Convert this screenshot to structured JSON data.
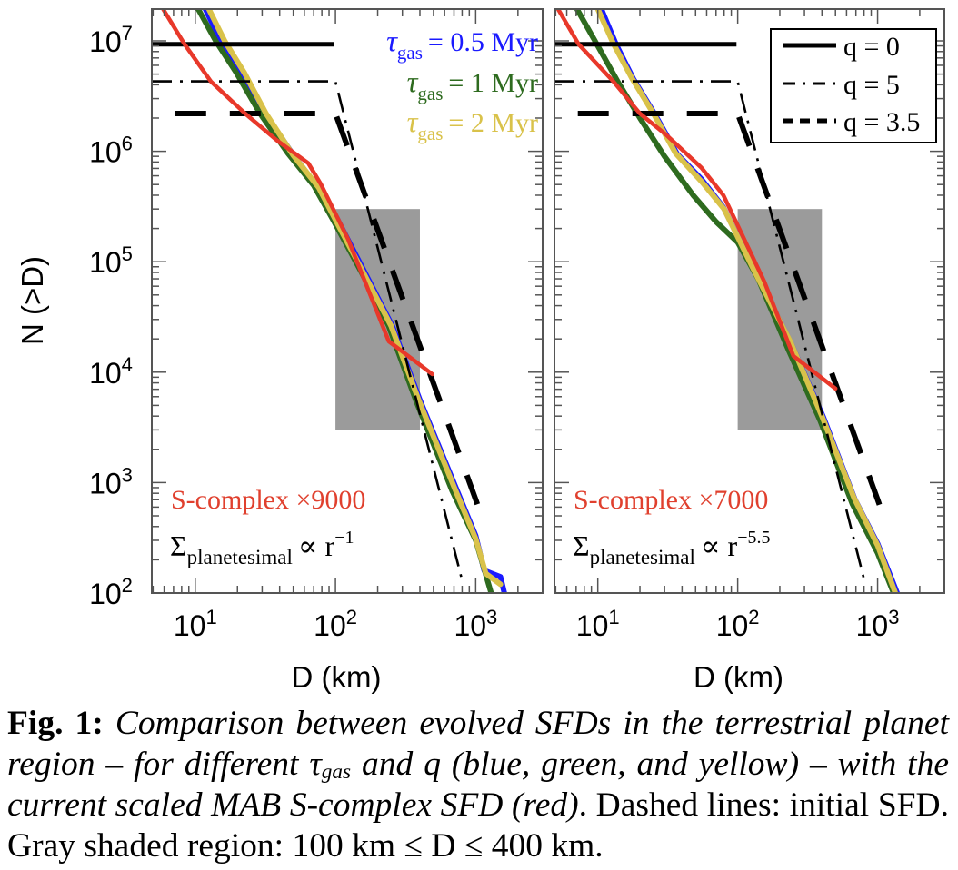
{
  "chart_data": [
    {
      "type": "line",
      "panel": "left",
      "xscale": "log",
      "yscale": "log",
      "xlabel": "D (km)",
      "ylabel": "N (>D)",
      "xlim": [
        4.9,
        3000
      ],
      "ylim": [
        100,
        19400000
      ],
      "xticks": [
        {
          "value": 10,
          "base": "10",
          "exp": "1"
        },
        {
          "value": 100,
          "base": "10",
          "exp": "2"
        },
        {
          "value": 1000,
          "base": "10",
          "exp": "3"
        }
      ],
      "yticks": [
        {
          "value": 10000000,
          "base": "10",
          "exp": "7"
        },
        {
          "value": 1000000,
          "base": "10",
          "exp": "6"
        },
        {
          "value": 100000,
          "base": "10",
          "exp": "5"
        },
        {
          "value": 10000,
          "base": "10",
          "exp": "4"
        },
        {
          "value": 1000,
          "base": "10",
          "exp": "3"
        },
        {
          "value": 100,
          "base": "10",
          "exp": "2"
        }
      ],
      "shaded_region": {
        "x": [
          100,
          400
        ],
        "y": [
          3000,
          300000
        ],
        "color": "#9b9b9b"
      },
      "annotations": {
        "scaling": {
          "text": "S-complex ×9000",
          "color": "#e0402e"
        },
        "sigma": {
          "symbol": "Σ",
          "sub": "planetesimal",
          "prop": "∝ r",
          "sup": "−1"
        }
      },
      "legend": {
        "placement": "top-right",
        "entries": [
          {
            "symbol": "τ",
            "sub": "gas",
            "text": "= 0.5 Myr",
            "color": "#1a1aff"
          },
          {
            "symbol": "τ",
            "sub": "gas",
            "text": "= 1 Myr",
            "color": "#2e6b1f"
          },
          {
            "symbol": "τ",
            "sub": "gas",
            "text": "= 2 Myr",
            "color": "#d9c24a"
          }
        ]
      },
      "series": [
        {
          "name": "initial q=0",
          "style": "solid",
          "color": "#000000",
          "x": [
            4.9,
            98
          ],
          "y": [
            9300000,
            9300000
          ]
        },
        {
          "name": "initial q=5",
          "style": "dashdot",
          "color": "#000000",
          "x": [
            4.9,
            100,
            800
          ],
          "y": [
            4300000,
            4300000,
            130
          ]
        },
        {
          "name": "initial q=3.5",
          "style": "dashed",
          "color": "#000000",
          "x": [
            7.2,
            100,
            1000,
            1140
          ],
          "y": [
            2200000,
            2200000,
            700,
            440
          ]
        },
        {
          "name": "S-complex x9000",
          "style": "solid",
          "color": "#e8382a",
          "x": [
            5.9,
            8.4,
            12.9,
            22.7,
            38.4,
            64,
            79,
            123,
            240,
            490
          ],
          "y": [
            19400000,
            9300000,
            4300000,
            2200000,
            1250000,
            780000,
            500000,
            160000,
            19000,
            9600
          ]
        },
        {
          "name": "tau_gas = 0.5 Myr",
          "style": "solid",
          "color": "#1a1aff",
          "x": [
            11.8,
            15.2,
            21,
            31.5,
            50,
            75,
            102,
            162,
            255,
            400,
            730,
            1000,
            1150,
            1500,
            1600
          ],
          "y": [
            19400000,
            10000000,
            5100000,
            2200000,
            930000,
            470000,
            250000,
            80000,
            26000,
            5600,
            870,
            330,
            160,
            140,
            100
          ]
        },
        {
          "name": "tau_gas = 1 Myr",
          "style": "solid",
          "color": "#2e6b1f",
          "x": [
            10.5,
            14,
            19.5,
            29,
            46,
            70,
            96,
            152,
            240,
            375,
            680,
            1000,
            1290
          ],
          "y": [
            19400000,
            10000000,
            5200000,
            2200000,
            950000,
            490000,
            240000,
            82000,
            26000,
            5500,
            840,
            300,
            100
          ]
        },
        {
          "name": "tau_gas = 2 Myr",
          "style": "solid",
          "color": "#d9c24a",
          "x": [
            12.5,
            16.2,
            22.5,
            32,
            50,
            76,
            100,
            158,
            250,
            392,
            715,
            1000,
            1180,
            1500
          ],
          "y": [
            19400000,
            10000000,
            5100000,
            2200000,
            920000,
            470000,
            240000,
            80000,
            26000,
            5600,
            860,
            310,
            150,
            120
          ]
        }
      ]
    },
    {
      "type": "line",
      "panel": "right",
      "xscale": "log",
      "yscale": "log",
      "xlabel": "D (km)",
      "ylabel": "",
      "xlim": [
        4.9,
        3000
      ],
      "ylim": [
        100,
        19400000
      ],
      "xticks": [
        {
          "value": 10,
          "base": "10",
          "exp": "1"
        },
        {
          "value": 100,
          "base": "10",
          "exp": "2"
        },
        {
          "value": 1000,
          "base": "10",
          "exp": "3"
        }
      ],
      "yticks": [],
      "shaded_region": {
        "x": [
          100,
          400
        ],
        "y": [
          3000,
          300000
        ],
        "color": "#9b9b9b"
      },
      "annotations": {
        "scaling": {
          "text": "S-complex ×7000",
          "color": "#e0402e"
        },
        "sigma": {
          "symbol": "Σ",
          "sub": "planetesimal",
          "prop": "∝ r",
          "sup": "−5.5"
        }
      },
      "legend": {
        "placement": "top-right",
        "entries": [
          {
            "text": "q = 0",
            "style": "solid"
          },
          {
            "text": "q = 5",
            "style": "dashdot"
          },
          {
            "text": "q = 3.5",
            "style": "dashed"
          }
        ]
      },
      "series": [
        {
          "name": "initial q=0",
          "style": "solid",
          "color": "#000000",
          "x": [
            4.9,
            98
          ],
          "y": [
            9300000,
            9300000
          ]
        },
        {
          "name": "initial q=5",
          "style": "dashdot",
          "color": "#000000",
          "x": [
            4.9,
            100,
            810
          ],
          "y": [
            4300000,
            4300000,
            125
          ]
        },
        {
          "name": "initial q=3.5",
          "style": "dashed",
          "color": "#000000",
          "x": [
            7.2,
            100,
            1000,
            1140
          ],
          "y": [
            2200000,
            2200000,
            700,
            440
          ]
        },
        {
          "name": "S-complex x7000",
          "style": "solid",
          "color": "#e8382a",
          "x": [
            5.2,
            7.3,
            12.9,
            20,
            31,
            55,
            79,
            155,
            250,
            500
          ],
          "y": [
            19400000,
            9300000,
            4300000,
            2200000,
            1400000,
            710000,
            400000,
            66000,
            14000,
            7100
          ]
        },
        {
          "name": "tau_gas = 0.5 Myr",
          "style": "solid",
          "color": "#1a1aff",
          "x": [
            10.6,
            13.5,
            18,
            25.4,
            37,
            55,
            79,
            133,
            242,
            410,
            690,
            1000,
            1380
          ],
          "y": [
            19400000,
            9300000,
            4500000,
            2200000,
            940000,
            560000,
            310000,
            82000,
            18000,
            3900,
            700,
            280,
            100
          ]
        },
        {
          "name": "tau_gas = 1 Myr",
          "style": "solid",
          "color": "#2e6b1f",
          "x": [
            7.1,
            10,
            14,
            20,
            30,
            48,
            70,
            100,
            140,
            230,
            390,
            660,
            1000,
            1300
          ],
          "y": [
            19400000,
            9000000,
            4200000,
            2000000,
            900000,
            400000,
            230000,
            150000,
            70000,
            16000,
            3600,
            640,
            230,
            100
          ]
        },
        {
          "name": "tau_gas = 2 Myr",
          "style": "solid",
          "color": "#d9c24a",
          "x": [
            10,
            13,
            17.5,
            25,
            36,
            56,
            80,
            130,
            240,
            400,
            680,
            1000,
            1340
          ],
          "y": [
            19400000,
            9300000,
            4600000,
            2200000,
            960000,
            520000,
            300000,
            85000,
            18500,
            4000,
            720,
            270,
            100
          ]
        }
      ]
    }
  ],
  "caption": {
    "fig_label": "Fig. 1:",
    "italic_1": "Comparison between evolved SFDs in the terrestrial planet region – for different τ",
    "italic_sub": "gas",
    "italic_2": " and q (blue, green, and yellow) – with the current scaled MAB S-complex SFD (red)",
    "plain": ". Dashed lines: initial SFD. Gray shaded region: 100 km ≤ D ≤ 400 km."
  }
}
